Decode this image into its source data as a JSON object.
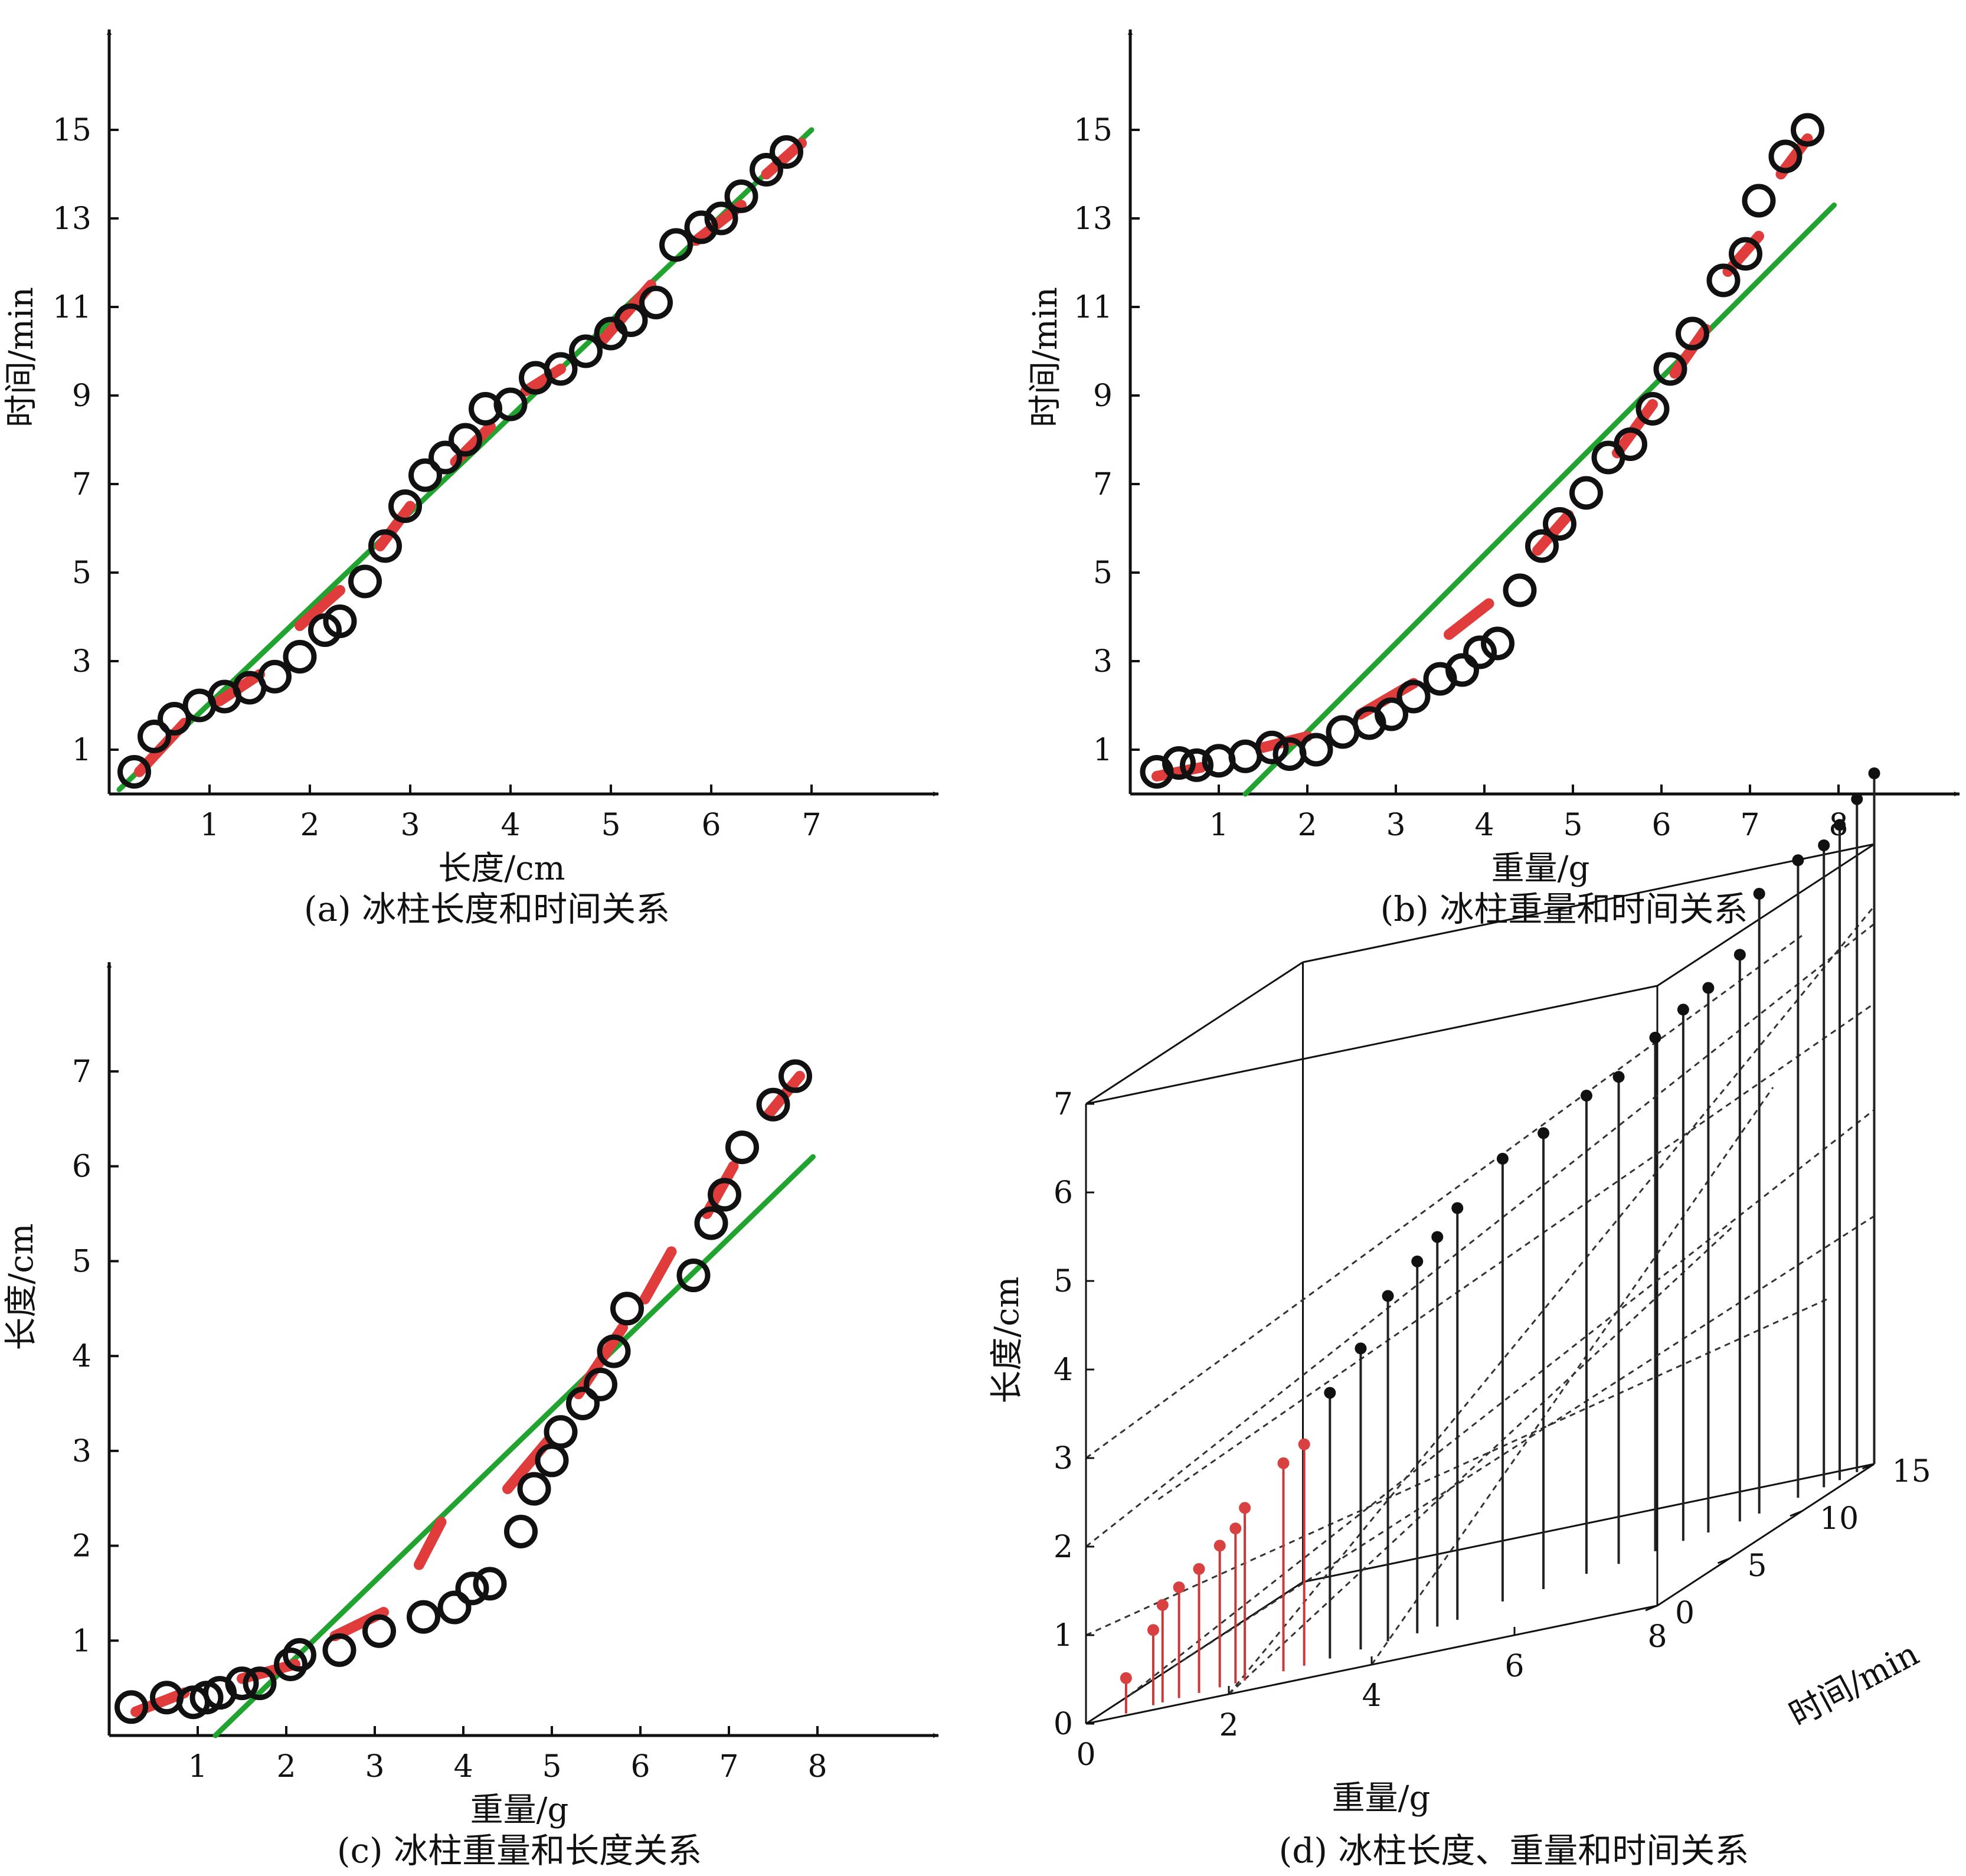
{
  "chart_data": [
    {
      "type": "scatter",
      "caption": "(a) 冰柱长度和时间关系",
      "xlabel": "长度/cm",
      "ylabel": "时间/min",
      "xlim": [
        0,
        8
      ],
      "ylim": [
        0,
        16.5
      ],
      "xticks": [
        "1",
        "2",
        "3",
        "4",
        "5",
        "6",
        "7"
      ],
      "yticks": [
        "1",
        "3",
        "5",
        "7",
        "9",
        "11",
        "13",
        "15"
      ],
      "points": [
        [
          0.25,
          0.5
        ],
        [
          0.45,
          1.3
        ],
        [
          0.65,
          1.7
        ],
        [
          0.9,
          2.0
        ],
        [
          1.15,
          2.2
        ],
        [
          1.4,
          2.4
        ],
        [
          1.65,
          2.65
        ],
        [
          1.9,
          3.1
        ],
        [
          2.15,
          3.7
        ],
        [
          2.3,
          3.9
        ],
        [
          2.55,
          4.8
        ],
        [
          2.75,
          5.6
        ],
        [
          2.95,
          6.5
        ],
        [
          3.15,
          7.2
        ],
        [
          3.35,
          7.6
        ],
        [
          3.55,
          8.0
        ],
        [
          3.75,
          8.7
        ],
        [
          4.0,
          8.8
        ],
        [
          4.25,
          9.4
        ],
        [
          4.5,
          9.6
        ],
        [
          4.75,
          10.0
        ],
        [
          5.0,
          10.4
        ],
        [
          5.2,
          10.7
        ],
        [
          5.45,
          11.1
        ],
        [
          5.65,
          12.4
        ],
        [
          5.9,
          12.8
        ],
        [
          6.1,
          13.0
        ],
        [
          6.3,
          13.5
        ],
        [
          6.55,
          14.1
        ],
        [
          6.75,
          14.5
        ]
      ],
      "fit_line": [
        [
          0.1,
          0.1
        ],
        [
          7.0,
          15.0
        ]
      ],
      "dashed_segments": [
        [
          [
            0.3,
            0.5
          ],
          [
            0.75,
            1.6
          ]
        ],
        [
          [
            1.1,
            2.1
          ],
          [
            1.5,
            2.7
          ]
        ],
        [
          [
            1.9,
            3.8
          ],
          [
            2.3,
            4.6
          ]
        ],
        [
          [
            2.7,
            5.6
          ],
          [
            3.0,
            6.5
          ]
        ],
        [
          [
            3.45,
            7.5
          ],
          [
            3.8,
            8.3
          ]
        ],
        [
          [
            4.15,
            9.1
          ],
          [
            4.5,
            9.6
          ]
        ],
        [
          [
            4.9,
            10.2
          ],
          [
            5.4,
            11.5
          ]
        ],
        [
          [
            5.85,
            12.5
          ],
          [
            6.3,
            13.3
          ]
        ],
        [
          [
            6.55,
            14.0
          ],
          [
            6.9,
            14.7
          ]
        ]
      ]
    },
    {
      "type": "scatter",
      "caption": "(b) 冰柱重量和时间关系",
      "xlabel": "重量/g",
      "ylabel": "时间/min",
      "xlim": [
        0,
        9
      ],
      "ylim": [
        0,
        16.5
      ],
      "xticks": [
        "1",
        "2",
        "3",
        "4",
        "5",
        "6",
        "7",
        "8"
      ],
      "yticks": [
        "1",
        "3",
        "5",
        "7",
        "9",
        "11",
        "13",
        "15"
      ],
      "points": [
        [
          0.3,
          0.5
        ],
        [
          0.55,
          0.7
        ],
        [
          0.75,
          0.65
        ],
        [
          1.0,
          0.75
        ],
        [
          1.3,
          0.85
        ],
        [
          1.6,
          1.05
        ],
        [
          1.8,
          0.9
        ],
        [
          2.1,
          1.0
        ],
        [
          2.4,
          1.4
        ],
        [
          2.7,
          1.6
        ],
        [
          2.95,
          1.8
        ],
        [
          3.2,
          2.2
        ],
        [
          3.5,
          2.6
        ],
        [
          3.75,
          2.8
        ],
        [
          3.95,
          3.2
        ],
        [
          4.15,
          3.4
        ],
        [
          4.4,
          4.6
        ],
        [
          4.65,
          5.6
        ],
        [
          4.85,
          6.1
        ],
        [
          5.15,
          6.8
        ],
        [
          5.4,
          7.6
        ],
        [
          5.65,
          7.9
        ],
        [
          5.9,
          8.7
        ],
        [
          6.1,
          9.6
        ],
        [
          6.35,
          10.4
        ],
        [
          6.7,
          11.6
        ],
        [
          6.95,
          12.2
        ],
        [
          7.1,
          13.4
        ],
        [
          7.4,
          14.4
        ],
        [
          7.65,
          15.0
        ]
      ],
      "fit_line": [
        [
          1.3,
          0.0
        ],
        [
          7.95,
          13.3
        ]
      ],
      "dashed_segments": [
        [
          [
            0.3,
            0.4
          ],
          [
            0.8,
            0.6
          ]
        ],
        [
          [
            1.5,
            1.05
          ],
          [
            2.0,
            1.3
          ]
        ],
        [
          [
            2.6,
            1.8
          ],
          [
            3.2,
            2.5
          ]
        ],
        [
          [
            3.6,
            3.6
          ],
          [
            4.05,
            4.3
          ]
        ],
        [
          [
            4.6,
            5.5
          ],
          [
            4.95,
            6.3
          ]
        ],
        [
          [
            5.5,
            7.7
          ],
          [
            5.9,
            8.8
          ]
        ],
        [
          [
            6.15,
            9.5
          ],
          [
            6.5,
            10.5
          ]
        ],
        [
          [
            6.75,
            11.8
          ],
          [
            7.1,
            12.6
          ]
        ],
        [
          [
            7.35,
            14.0
          ],
          [
            7.65,
            14.8
          ]
        ]
      ]
    },
    {
      "type": "scatter",
      "caption": "(c) 冰柱重量和长度关系",
      "xlabel": "重量/g",
      "ylabel": "长度/cm",
      "xlim": [
        0,
        9
      ],
      "ylim": [
        0,
        7.8
      ],
      "xticks": [
        "1",
        "2",
        "3",
        "4",
        "5",
        "6",
        "7",
        "8"
      ],
      "yticks": [
        "1",
        "2",
        "3",
        "4",
        "5",
        "6",
        "7"
      ],
      "points": [
        [
          0.25,
          0.3
        ],
        [
          0.65,
          0.4
        ],
        [
          0.95,
          0.35
        ],
        [
          1.1,
          0.4
        ],
        [
          1.25,
          0.45
        ],
        [
          1.5,
          0.55
        ],
        [
          1.7,
          0.55
        ],
        [
          2.05,
          0.75
        ],
        [
          2.15,
          0.85
        ],
        [
          2.6,
          0.9
        ],
        [
          3.05,
          1.1
        ],
        [
          3.55,
          1.25
        ],
        [
          3.9,
          1.35
        ],
        [
          4.1,
          1.55
        ],
        [
          4.3,
          1.6
        ],
        [
          4.65,
          2.15
        ],
        [
          4.8,
          2.6
        ],
        [
          5.0,
          2.9
        ],
        [
          5.1,
          3.2
        ],
        [
          5.35,
          3.5
        ],
        [
          5.55,
          3.7
        ],
        [
          5.7,
          4.05
        ],
        [
          5.85,
          4.5
        ],
        [
          6.6,
          4.85
        ],
        [
          6.8,
          5.4
        ],
        [
          6.95,
          5.7
        ],
        [
          7.15,
          6.2
        ],
        [
          7.5,
          6.65
        ],
        [
          7.75,
          6.95
        ]
      ],
      "fit_line": [
        [
          1.2,
          0.0
        ],
        [
          7.95,
          6.1
        ]
      ],
      "dashed_segments": [
        [
          [
            0.3,
            0.25
          ],
          [
            0.85,
            0.45
          ]
        ],
        [
          [
            1.5,
            0.6
          ],
          [
            2.1,
            0.75
          ]
        ],
        [
          [
            2.55,
            1.05
          ],
          [
            3.1,
            1.3
          ]
        ],
        [
          [
            3.5,
            1.8
          ],
          [
            3.75,
            2.25
          ]
        ],
        [
          [
            4.5,
            2.6
          ],
          [
            4.95,
            3.1
          ]
        ],
        [
          [
            5.3,
            3.6
          ],
          [
            5.8,
            4.3
          ]
        ],
        [
          [
            6.05,
            4.6
          ],
          [
            6.35,
            5.1
          ]
        ],
        [
          [
            6.75,
            5.5
          ],
          [
            7.05,
            6.0
          ]
        ],
        [
          [
            7.45,
            6.55
          ],
          [
            7.8,
            6.95
          ]
        ]
      ]
    },
    {
      "type": "stem3d",
      "caption": "(d) 冰柱长度、重量和时间关系",
      "xlabel": "重量/g",
      "ylabel": "时间/min",
      "zlabel": "长度/cm",
      "xlim": [
        0,
        8
      ],
      "ylim": [
        0,
        15
      ],
      "zlim": [
        0,
        7
      ],
      "xticks": [
        "0",
        "2",
        "4",
        "6",
        "8"
      ],
      "yticks": [
        "0",
        "5",
        "10",
        "15"
      ],
      "zticks": [
        "0",
        "1",
        "2",
        "3",
        "4",
        "5",
        "6",
        "7"
      ],
      "stems": [
        [
          0.5,
          0.3,
          0.4
        ],
        [
          0.8,
          0.7,
          0.85
        ],
        [
          0.9,
          0.85,
          1.1
        ],
        [
          1.1,
          1.0,
          1.25
        ],
        [
          1.35,
          1.15,
          1.4
        ],
        [
          1.6,
          1.35,
          1.6
        ],
        [
          1.8,
          1.45,
          1.75
        ],
        [
          1.9,
          1.6,
          1.95
        ],
        [
          2.4,
          1.8,
          2.35
        ],
        [
          2.65,
          2.0,
          2.5
        ],
        [
          2.95,
          2.3,
          3.0
        ],
        [
          3.3,
          2.7,
          3.4
        ],
        [
          3.6,
          3.1,
          3.9
        ],
        [
          3.95,
          3.4,
          4.2
        ],
        [
          4.15,
          3.8,
          4.4
        ],
        [
          4.35,
          4.2,
          4.65
        ],
        [
          4.7,
          5.6,
          5.0
        ],
        [
          5.15,
          6.2,
          5.15
        ],
        [
          5.55,
          7.2,
          5.4
        ],
        [
          5.9,
          7.7,
          5.5
        ],
        [
          6.25,
          8.5,
          5.8
        ],
        [
          6.5,
          9.2,
          6.0
        ],
        [
          6.75,
          9.7,
          6.15
        ],
        [
          7.05,
          10.4,
          6.4
        ],
        [
          7.2,
          11.0,
          7.0
        ],
        [
          7.5,
          12.2,
          7.2
        ],
        [
          7.7,
          13.0,
          7.25
        ],
        [
          7.8,
          13.6,
          7.4
        ],
        [
          7.9,
          14.3,
          7.6
        ],
        [
          8.0,
          15.0,
          7.8
        ]
      ],
      "grid_lines": [
        [
          [
            2.0,
            0.0,
            0.0
          ],
          [
            8.0,
            15.0,
            6.3
          ]
        ],
        [
          [
            0.0,
            3.0,
            0.0
          ],
          [
            8.0,
            15.0,
            4.0
          ]
        ],
        [
          [
            0.0,
            0.0,
            2.0
          ],
          [
            8.0,
            15.0,
            6.1
          ]
        ],
        [
          [
            4.0,
            0.0,
            0.0
          ],
          [
            8.0,
            8.0,
            5.0
          ]
        ],
        [
          [
            0.0,
            6.0,
            0.0
          ],
          [
            8.0,
            15.0,
            2.8
          ]
        ],
        [
          [
            0.0,
            0.0,
            3.0
          ],
          [
            8.0,
            10.0,
            6.5
          ]
        ],
        [
          [
            2.0,
            0.0,
            0.0
          ],
          [
            6.0,
            15.0,
            3.0
          ]
        ],
        [
          [
            0.0,
            5.0,
            2.0
          ],
          [
            8.0,
            15.0,
            5.2
          ]
        ],
        [
          [
            0.0,
            0.0,
            1.0
          ],
          [
            8.0,
            12.0,
            2.2
          ]
        ]
      ]
    }
  ]
}
